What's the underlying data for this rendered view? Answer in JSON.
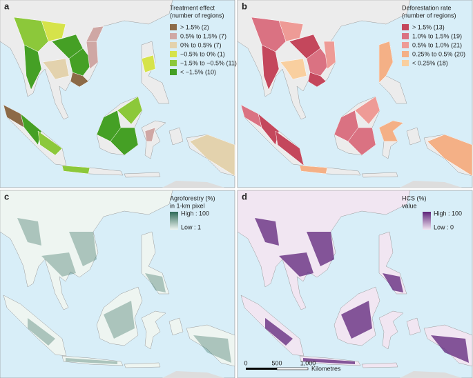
{
  "panels": [
    {
      "label": "a",
      "legend": {
        "title": [
          "Treatment effect",
          "(number of regions)"
        ],
        "entries": [
          {
            "label": "> 1.5% (2)",
            "color": "#8c6a47"
          },
          {
            "label": "0.5% to 1.5% (7)",
            "color": "#cfa7a4"
          },
          {
            "label": "0% to 0.5% (7)",
            "color": "#e3d2ad"
          },
          {
            "label": "−0.5% to 0% (1)",
            "color": "#d6e34a"
          },
          {
            "label": "−1.5% to −0.5% (11)",
            "color": "#8cc83a"
          },
          {
            "label": "< −1.5% (10)",
            "color": "#45a025"
          }
        ]
      }
    },
    {
      "label": "b",
      "legend": {
        "title": [
          "Deforestation rate",
          "(number of regions)"
        ],
        "entries": [
          {
            "label": "> 1.5% (13)",
            "color": "#c4475c"
          },
          {
            "label": "1.0% to 1.5% (19)",
            "color": "#da7282"
          },
          {
            "label": "0.5% to 1.0% (21)",
            "color": "#ee9b96"
          },
          {
            "label": "0.25% to 0.5% (20)",
            "color": "#f4b086"
          },
          {
            "label": "< 0.25% (18)",
            "color": "#f9cf9f"
          }
        ]
      }
    },
    {
      "label": "c",
      "legend": {
        "title": [
          "Agroforestry (%)",
          "in 1-km pixel"
        ],
        "high": "High : 100",
        "low": "Low : 1",
        "colors": [
          "#2e6a58",
          "#eef5f1"
        ]
      }
    },
    {
      "label": "d",
      "legend": {
        "title": [
          "HCS (%)",
          "value"
        ],
        "high": "High : 100",
        "low": "Low : 0",
        "colors": [
          "#5e2379",
          "#f1e6f2"
        ]
      },
      "scale": {
        "ticks": [
          "0",
          "500",
          "1,000"
        ],
        "unit": "Kilometres"
      }
    }
  ]
}
